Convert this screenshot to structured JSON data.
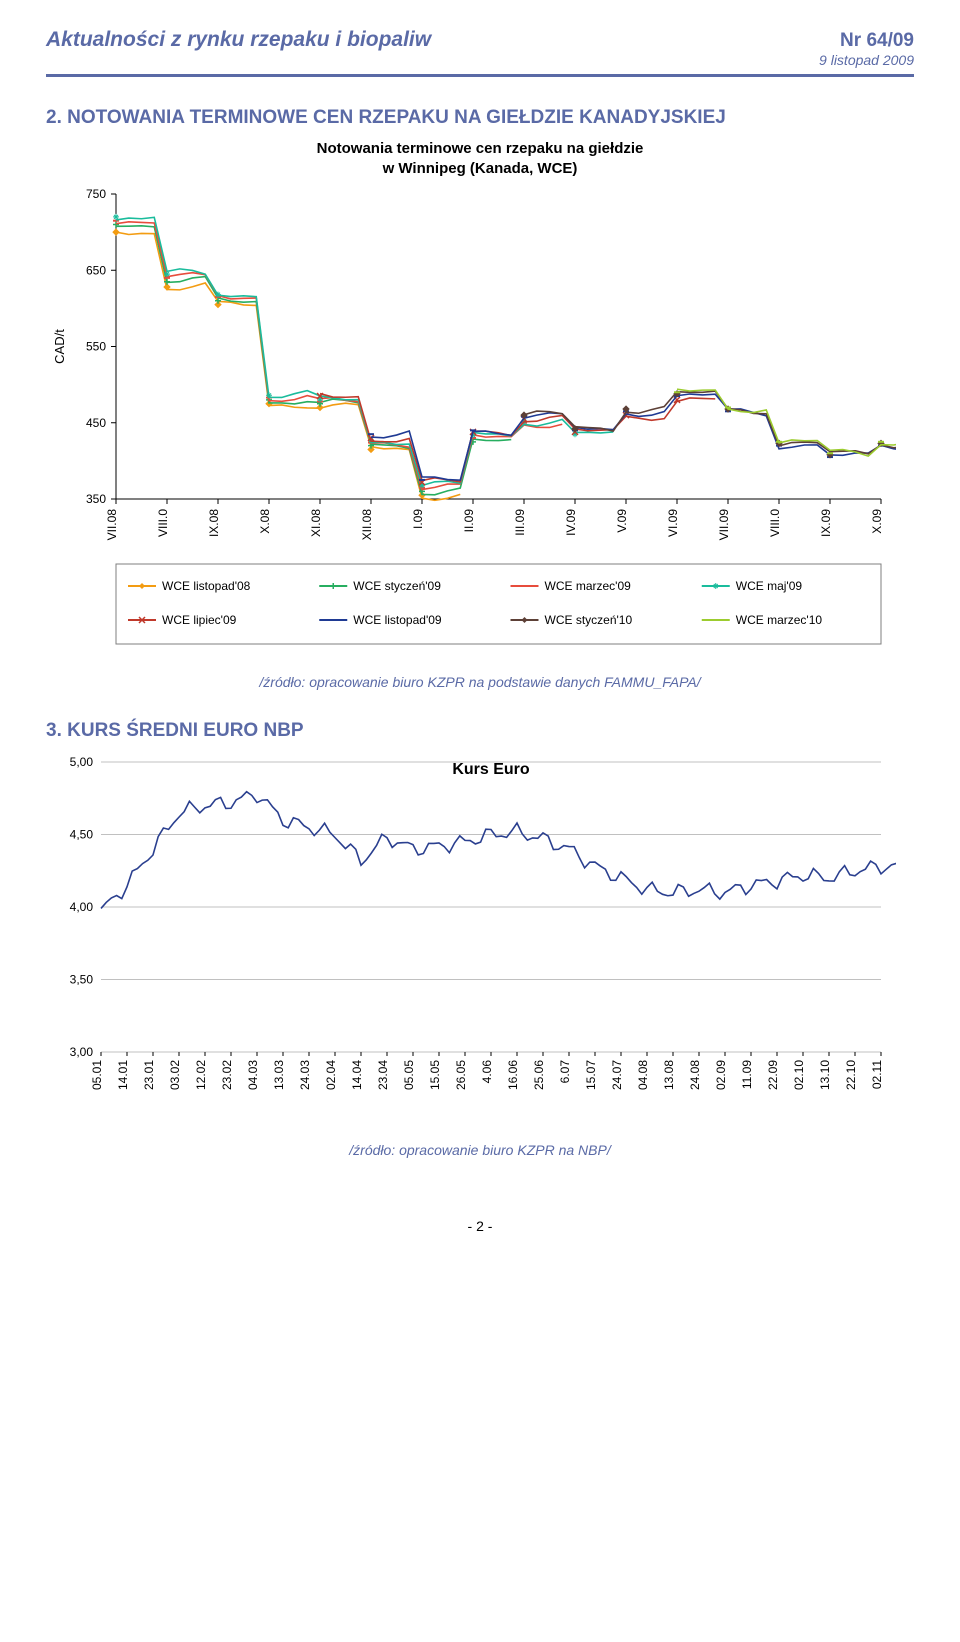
{
  "header": {
    "title": "Aktualności z rynku rzepaku i biopaliw",
    "issue": "Nr 64/09",
    "date": "9 listopad  2009"
  },
  "section2": {
    "heading": "2. NOTOWANIA TERMINOWE CEN RZEPAKU NA GIEŁDZIE KANADYJSKIEJ",
    "chart": {
      "type": "line",
      "title": "Notowania terminowe cen rzepaku na giełdzie\nw Winnipeg (Kanada, WCE)",
      "y_title": "CAD/t",
      "ylim": [
        350,
        750
      ],
      "ytick_step": 100,
      "x_categories": [
        "VII.08",
        "VIII.0",
        "IX.08",
        "X.08",
        "XI.08",
        "XII.08",
        "I.09",
        "II.09",
        "III.09",
        "IV.09",
        "V.09",
        "VI.09",
        "VII.09",
        "VIII.0",
        "IX.09",
        "X.09"
      ],
      "series": [
        {
          "name": "WCE listopad'08",
          "color": "#f39c12",
          "marker": "diamond",
          "values": [
            700,
            628,
            605,
            475,
            470,
            415,
            355,
            null,
            null,
            null,
            null,
            null,
            null,
            null,
            null,
            null
          ]
        },
        {
          "name": "WCE styczeń'09",
          "color": "#27ae60",
          "marker": "plus",
          "values": [
            710,
            635,
            610,
            480,
            475,
            420,
            360,
            425,
            null,
            null,
            null,
            null,
            null,
            null,
            null,
            null
          ]
        },
        {
          "name": "WCE marzec'09",
          "color": "#e74c3c",
          "marker": "line",
          "values": [
            715,
            640,
            615,
            483,
            478,
            424,
            365,
            430,
            450,
            null,
            null,
            null,
            null,
            null,
            null,
            null
          ]
        },
        {
          "name": "WCE maj'09",
          "color": "#1abc9c",
          "marker": "star",
          "values": [
            720,
            645,
            618,
            486,
            481,
            427,
            368,
            434,
            452,
            435,
            null,
            null,
            null,
            null,
            null,
            null
          ]
        },
        {
          "name": "WCE lipiec'09",
          "color": "#c0392b",
          "marker": "x",
          "values": [
            null,
            null,
            null,
            null,
            485,
            430,
            372,
            438,
            455,
            438,
            460,
            480,
            null,
            null,
            null,
            null
          ]
        },
        {
          "name": "WCE listopad'09",
          "color": "#1f3a93",
          "marker": "line",
          "values": [
            null,
            null,
            null,
            null,
            null,
            435,
            375,
            440,
            458,
            440,
            465,
            485,
            465,
            420,
            405,
            420
          ]
        },
        {
          "name": "WCE styczeń'10",
          "color": "#5d4037",
          "marker": "diamond",
          "values": [
            null,
            null,
            null,
            null,
            null,
            null,
            null,
            null,
            460,
            442,
            468,
            488,
            468,
            423,
            408,
            423
          ]
        },
        {
          "name": "WCE marzec'10",
          "color": "#9ccc2f",
          "marker": "line",
          "values": [
            null,
            null,
            null,
            null,
            null,
            null,
            null,
            null,
            null,
            null,
            null,
            490,
            470,
            425,
            410,
            425
          ]
        }
      ],
      "legend_columns": 4,
      "background_color": "#ffffff",
      "grid_color": "#c0c0c0",
      "border_color": "#7f7f7f"
    },
    "source": "/źródło: opracowanie biuro KZPR na podstawie danych FAMMU_FAPA/"
  },
  "section3": {
    "heading": "3. KURS ŚREDNI EURO  NBP",
    "chart": {
      "type": "line",
      "title": "Kurs Euro",
      "ylim": [
        3.0,
        5.0
      ],
      "ytick_step": 0.5,
      "x_categories": [
        "05.01",
        "14.01",
        "23.01",
        "03.02",
        "12.02",
        "23.02",
        "04.03",
        "13.03",
        "24.03",
        "02.04",
        "14.04",
        "23.04",
        "05.05",
        "15.05",
        "26.05",
        "4.06",
        "16.06",
        "25.06",
        "6.07",
        "15.07",
        "24.07",
        "04.08",
        "13.08",
        "24.08",
        "02.09",
        "11.09",
        "22.09",
        "02.10",
        "13.10",
        "22.10",
        "02.11"
      ],
      "values": [
        3.97,
        4.15,
        4.4,
        4.65,
        4.7,
        4.72,
        4.78,
        4.6,
        4.55,
        4.5,
        4.32,
        4.48,
        4.4,
        4.42,
        4.45,
        4.5,
        4.52,
        4.47,
        4.4,
        4.28,
        4.2,
        4.12,
        4.1,
        4.12,
        4.1,
        4.15,
        4.18,
        4.22,
        4.2,
        4.25,
        4.28
      ],
      "line_color": "#2a3f8f",
      "background_color": "#ffffff",
      "grid_color": "#c0c0c0"
    },
    "source": "/źródło: opracowanie biuro KZPR na NBP/"
  },
  "page_number": "- 2 -"
}
